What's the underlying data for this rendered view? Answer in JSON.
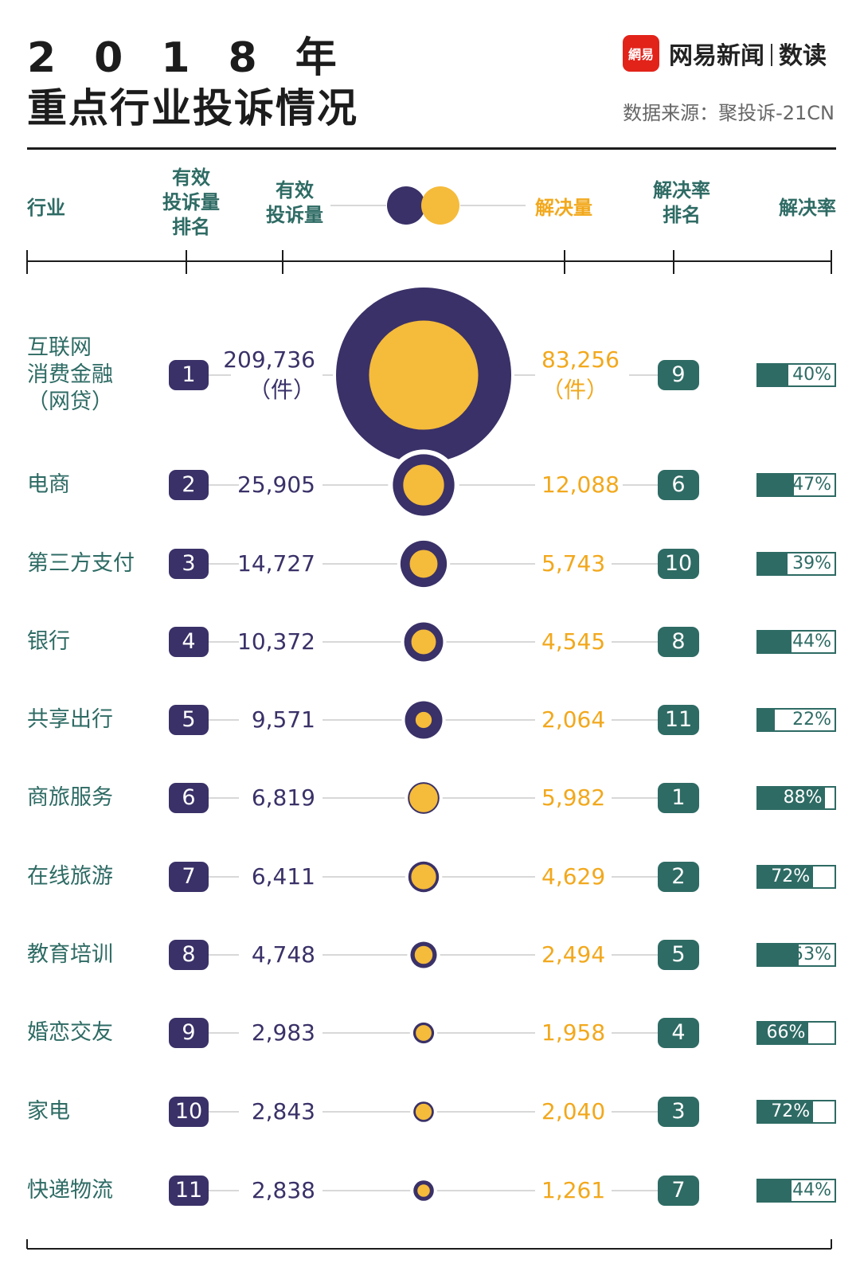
{
  "header": {
    "title_line1": "2018年",
    "title_line2": "重点行业投诉情况",
    "brand_logo": "網易",
    "brand_name": "网易新闻",
    "brand_section": "数读",
    "source": "数据来源：聚投诉-21CN"
  },
  "columns": {
    "industry": "行业",
    "complaint_rank": "有效\n投诉量\n排名",
    "complaints": "有效\n投诉量",
    "resolved": "解决量",
    "resolve_rate_rank": "解决率\n排名",
    "resolve_rate": "解决率"
  },
  "colors": {
    "complaints": "#3a3168",
    "resolved": "#f5bb3a",
    "rate": "#2e6b64",
    "resolved_text": "#f2a81c"
  },
  "chart_data": {
    "type": "table",
    "columns": [
      "行业",
      "有效投诉量排名",
      "有效投诉量",
      "解决量",
      "解决率排名",
      "解决率"
    ],
    "unit_note": "（件）",
    "rows": [
      {
        "industry": "互联网\n消费金融\n（网贷）",
        "complaint_rank": 1,
        "complaints": 209736,
        "complaints_text": "209,736",
        "resolved": 83256,
        "resolved_text": "83,256",
        "rate_rank": 9,
        "rate": 0.4,
        "rate_text": "40%"
      },
      {
        "industry": "电商",
        "complaint_rank": 2,
        "complaints": 25905,
        "complaints_text": "25,905",
        "resolved": 12088,
        "resolved_text": "12,088",
        "rate_rank": 6,
        "rate": 0.47,
        "rate_text": "47%"
      },
      {
        "industry": "第三方支付",
        "complaint_rank": 3,
        "complaints": 14727,
        "complaints_text": "14,727",
        "resolved": 5743,
        "resolved_text": "5,743",
        "rate_rank": 10,
        "rate": 0.39,
        "rate_text": "39%"
      },
      {
        "industry": "银行",
        "complaint_rank": 4,
        "complaints": 10372,
        "complaints_text": "10,372",
        "resolved": 4545,
        "resolved_text": "4,545",
        "rate_rank": 8,
        "rate": 0.44,
        "rate_text": "44%"
      },
      {
        "industry": "共享出行",
        "complaint_rank": 5,
        "complaints": 9571,
        "complaints_text": "9,571",
        "resolved": 2064,
        "resolved_text": "2,064",
        "rate_rank": 11,
        "rate": 0.22,
        "rate_text": "22%"
      },
      {
        "industry": "商旅服务",
        "complaint_rank": 6,
        "complaints": 6819,
        "complaints_text": "6,819",
        "resolved": 5982,
        "resolved_text": "5,982",
        "rate_rank": 1,
        "rate": 0.88,
        "rate_text": "88%"
      },
      {
        "industry": "在线旅游",
        "complaint_rank": 7,
        "complaints": 6411,
        "complaints_text": "6,411",
        "resolved": 4629,
        "resolved_text": "4,629",
        "rate_rank": 2,
        "rate": 0.72,
        "rate_text": "72%"
      },
      {
        "industry": "教育培训",
        "complaint_rank": 8,
        "complaints": 4748,
        "complaints_text": "4,748",
        "resolved": 2494,
        "resolved_text": "2,494",
        "rate_rank": 5,
        "rate": 0.53,
        "rate_text": "53%"
      },
      {
        "industry": "婚恋交友",
        "complaint_rank": 9,
        "complaints": 2983,
        "complaints_text": "2,983",
        "resolved": 1958,
        "resolved_text": "1,958",
        "rate_rank": 4,
        "rate": 0.66,
        "rate_text": "66%"
      },
      {
        "industry": "家电",
        "complaint_rank": 10,
        "complaints": 2843,
        "complaints_text": "2,843",
        "resolved": 2040,
        "resolved_text": "2,040",
        "rate_rank": 3,
        "rate": 0.72,
        "rate_text": "72%"
      },
      {
        "industry": "快递物流",
        "complaint_rank": 11,
        "complaints": 2838,
        "complaints_text": "2,838",
        "resolved": 1261,
        "resolved_text": "1,261",
        "rate_rank": 7,
        "rate": 0.44,
        "rate_text": "44%"
      }
    ]
  }
}
